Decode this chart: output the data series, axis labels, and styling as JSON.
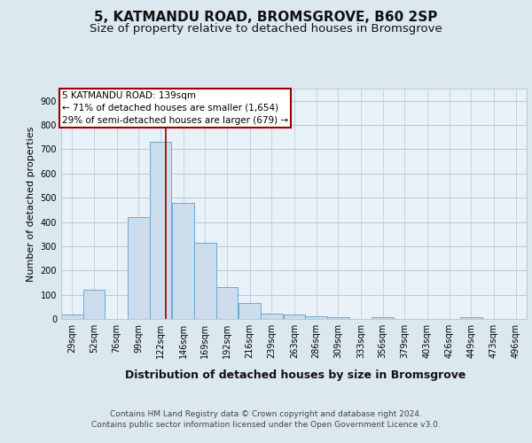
{
  "title1": "5, KATMANDU ROAD, BROMSGROVE, B60 2SP",
  "title2": "Size of property relative to detached houses in Bromsgrove",
  "xlabel": "Distribution of detached houses by size in Bromsgrove",
  "ylabel": "Number of detached properties",
  "footer1": "Contains HM Land Registry data © Crown copyright and database right 2024.",
  "footer2": "Contains public sector information licensed under the Open Government Licence v3.0.",
  "annotation_line1": "5 KATMANDU ROAD: 139sqm",
  "annotation_line2": "← 71% of detached houses are smaller (1,654)",
  "annotation_line3": "29% of semi-detached houses are larger (679) →",
  "bar_color": "#ccdcec",
  "bar_edge_color": "#6aaad4",
  "ref_line_color": "#990000",
  "ref_line_x": 139,
  "categories": [
    29,
    52,
    76,
    99,
    122,
    146,
    169,
    192,
    216,
    239,
    263,
    286,
    309,
    333,
    356,
    379,
    403,
    426,
    449,
    473,
    496
  ],
  "values": [
    20,
    122,
    0,
    422,
    730,
    480,
    315,
    130,
    65,
    23,
    20,
    10,
    8,
    0,
    7,
    0,
    0,
    0,
    8,
    0,
    0
  ],
  "bin_width": 23,
  "ylim": [
    0,
    950
  ],
  "yticks": [
    0,
    100,
    200,
    300,
    400,
    500,
    600,
    700,
    800,
    900
  ],
  "background_color": "#dce8f0",
  "plot_bg_color": "#e8f0f8",
  "grid_color": "#b8c8d8",
  "title1_fontsize": 11,
  "title2_fontsize": 9.5,
  "xlabel_fontsize": 9,
  "ylabel_fontsize": 8,
  "tick_fontsize": 7,
  "annotation_fontsize": 7.5,
  "footer_fontsize": 6.5
}
